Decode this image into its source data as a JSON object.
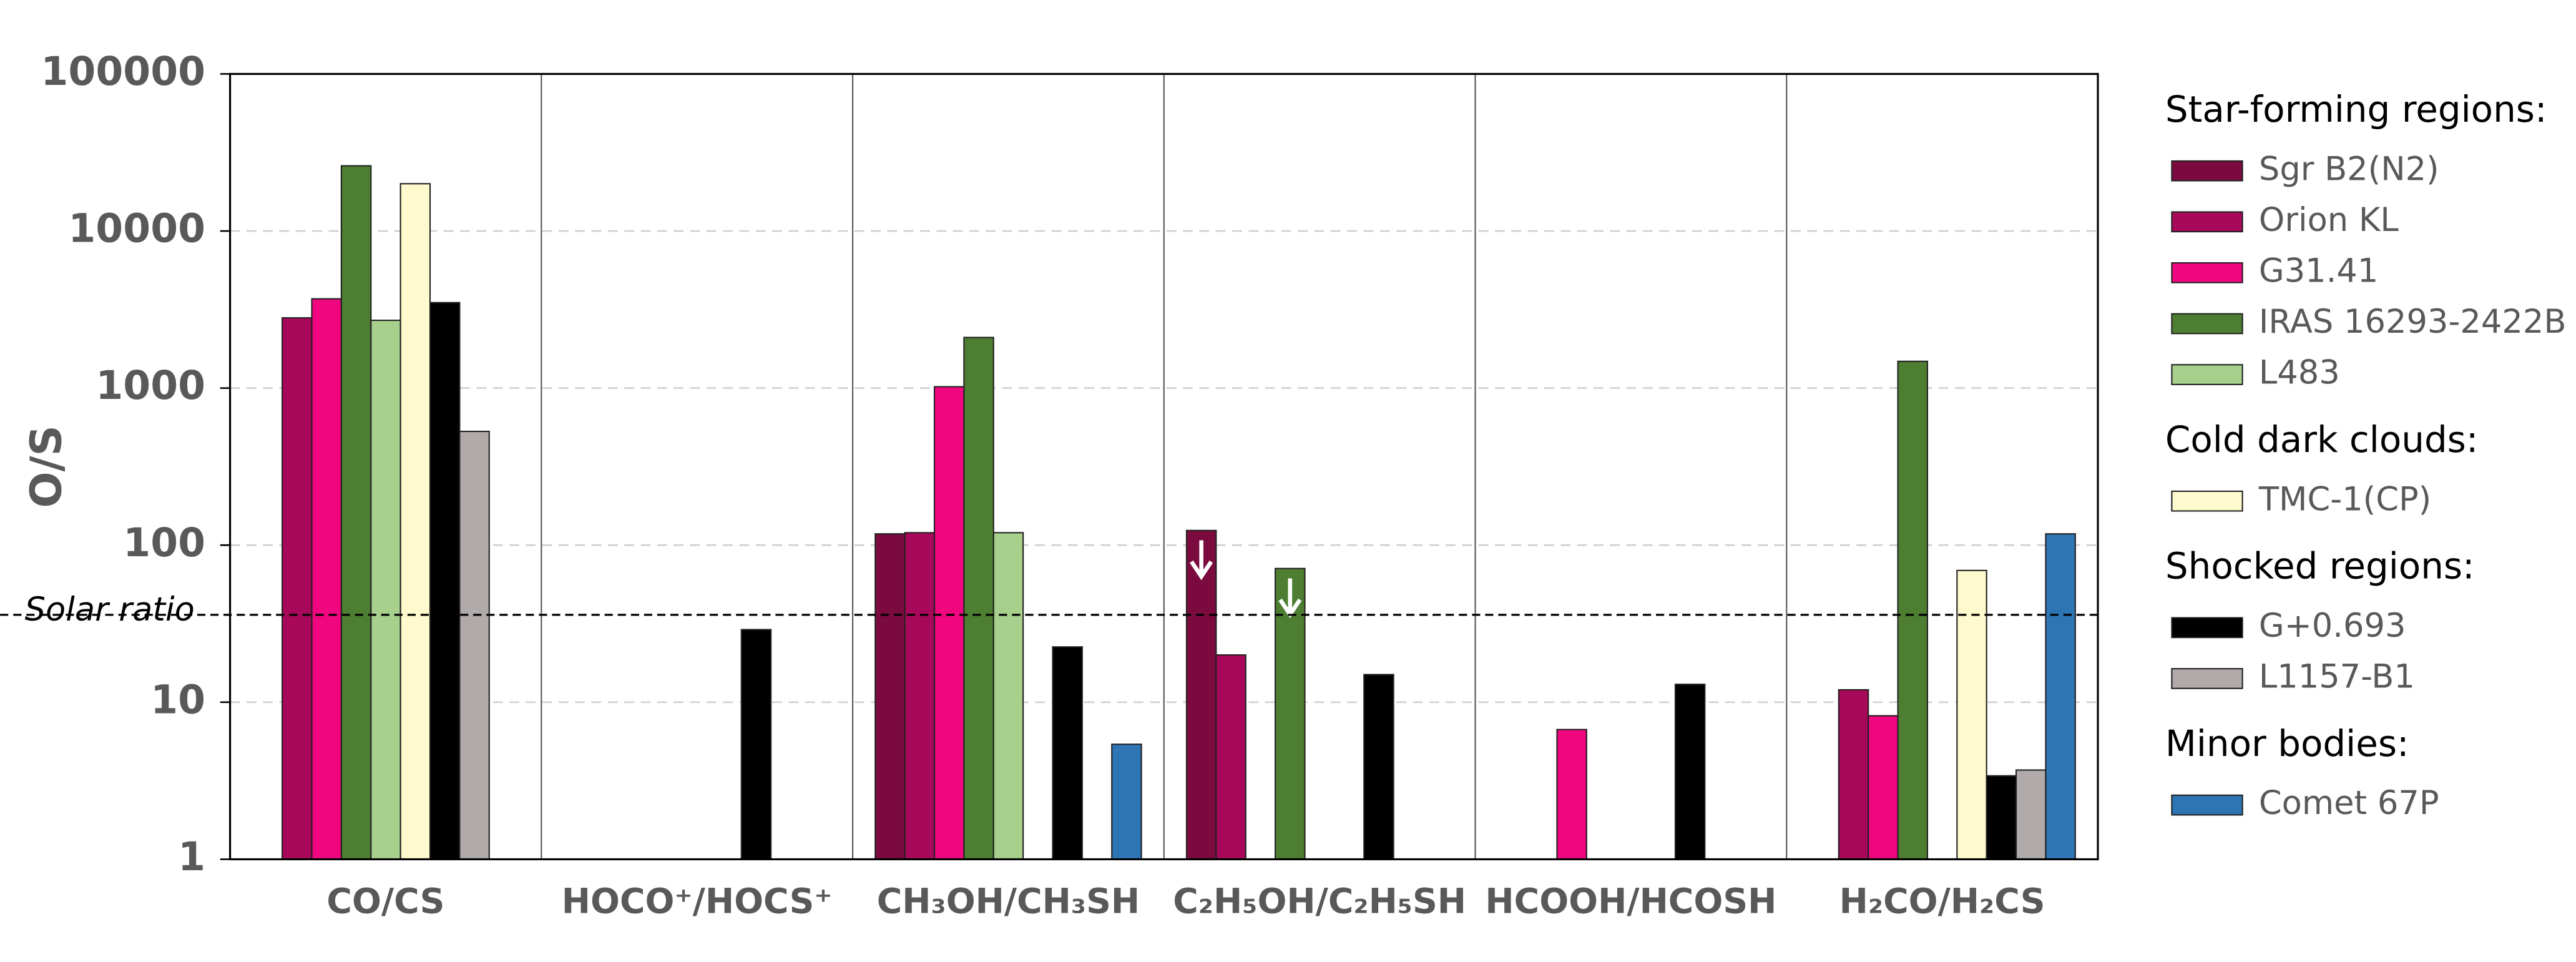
{
  "chart_data": {
    "type": "bar",
    "log_scale": true,
    "grid": true,
    "legend": "right",
    "ylabel": "O/S",
    "categories": [
      "CO/CS",
      "HOCO⁺/HOCS⁺",
      "CH₃OH/CH₃SH",
      "C₂H₅OH/C₂H₅SH",
      "HCOOH/HCOSH",
      "H₂CO/H₂CS"
    ],
    "ylim": [
      1,
      100000
    ],
    "yticks": [
      1,
      10,
      100,
      1000,
      10000,
      100000
    ],
    "reference_line": {
      "value": 36,
      "label": "Solar ratio"
    },
    "series": [
      {
        "name": "Sgr B2(N2)",
        "group": "Star-forming regions:",
        "color": "#7b0a3e",
        "values": [
          null,
          null,
          118,
          124,
          null,
          null
        ],
        "upper_limit": [
          false,
          false,
          false,
          true,
          false,
          false
        ]
      },
      {
        "name": "Orion KL",
        "group": "Star-forming regions:",
        "color": "#a8085a",
        "values": [
          2800,
          null,
          120,
          20,
          null,
          12
        ]
      },
      {
        "name": "G31.41",
        "group": "Star-forming regions:",
        "color": "#f0077f",
        "values": [
          3700,
          null,
          1020,
          null,
          6.7,
          8.2
        ]
      },
      {
        "name": "IRAS 16293-2422B",
        "group": "Star-forming regions:",
        "color": "#4e7e31",
        "values": [
          26000,
          null,
          2100,
          71,
          null,
          1480
        ],
        "upper_limit": [
          false,
          false,
          false,
          true,
          false,
          false
        ]
      },
      {
        "name": "L483",
        "group": "Star-forming regions:",
        "color": "#a8d08d",
        "values": [
          2700,
          null,
          120,
          null,
          null,
          null
        ]
      },
      {
        "name": "TMC-1(CP)",
        "group": "Cold dark clouds:",
        "color": "#fffacd",
        "values": [
          20000,
          null,
          null,
          null,
          null,
          69
        ]
      },
      {
        "name": "G+0.693",
        "group": "Shocked regions:",
        "color": "#000000",
        "values": [
          3500,
          29,
          22.5,
          15,
          13,
          3.4
        ]
      },
      {
        "name": "L1157-B1",
        "group": "Shocked regions:",
        "color": "#b0aaaa",
        "values": [
          530,
          null,
          null,
          null,
          null,
          3.7
        ]
      },
      {
        "name": "Comet 67P",
        "group": "Minor bodies:",
        "color": "#2e75b6",
        "values": [
          null,
          null,
          5.4,
          null,
          null,
          118
        ]
      }
    ]
  }
}
